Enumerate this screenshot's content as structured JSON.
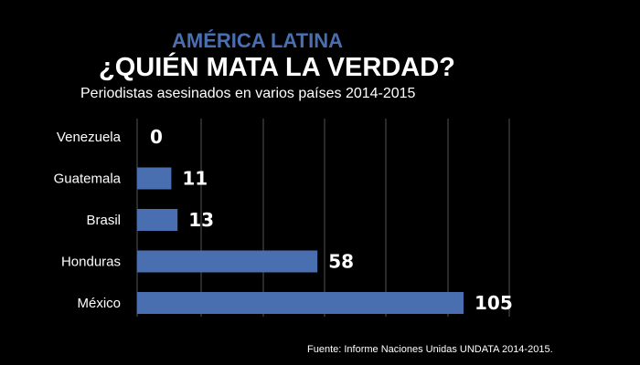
{
  "header": {
    "kicker": "AMÉRICA LATINA",
    "title": "¿QUIÉN MATA LA VERDAD?",
    "subtitle": "Periodistas asesinados en varios países 2014-2015"
  },
  "source": "Fuente: Informe Naciones Unidas UNDATA 2014-2015.",
  "colors": {
    "background": "#000000",
    "bar": "#4a6fb0",
    "kicker": "#4a6fb0",
    "text": "#ffffff",
    "grid": "#555555"
  },
  "chart_data": {
    "type": "bar",
    "orientation": "horizontal",
    "title": "¿QUIÉN MATA LA VERDAD?",
    "subtitle": "Periodistas asesinados en varios países 2014-2015",
    "categories": [
      "Venezuela",
      "Guatemala",
      "Brasil",
      "Honduras",
      "México"
    ],
    "values": [
      0,
      11,
      13,
      58,
      105
    ],
    "data_labels": [
      "0",
      "11",
      "13",
      "58",
      "105"
    ],
    "xlim": [
      0,
      120
    ],
    "grid": true,
    "legend": "none"
  }
}
